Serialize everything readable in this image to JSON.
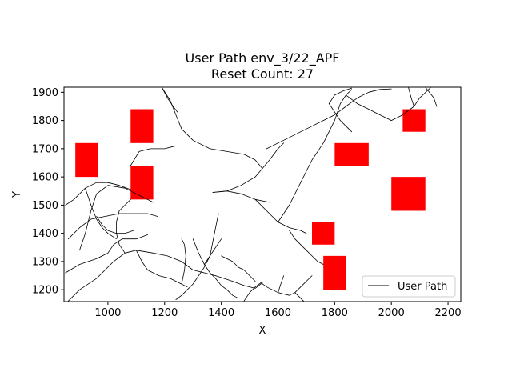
{
  "chart_data": {
    "type": "line",
    "title_line1": "User Path env_3/22_APF",
    "title_line2": "Reset Count: 27",
    "xlabel": "X",
    "ylabel": "Y",
    "xlim": [
      845,
      2245
    ],
    "ylim": [
      1158,
      1918
    ],
    "x_ticks": [
      1000,
      1200,
      1400,
      1600,
      1800,
      2000,
      2200
    ],
    "y_ticks": [
      1200,
      1300,
      1400,
      1500,
      1600,
      1700,
      1800,
      1900
    ],
    "legend": {
      "label": "User Path",
      "placement": "lower right"
    },
    "colors": {
      "path": "#000000",
      "obstacle": "#ff0000"
    },
    "obstacles": [
      {
        "x0": 885,
        "x1": 965,
        "y0": 1600,
        "y1": 1720
      },
      {
        "x0": 1080,
        "x1": 1160,
        "y0": 1720,
        "y1": 1840
      },
      {
        "x0": 1080,
        "x1": 1160,
        "y0": 1520,
        "y1": 1640
      },
      {
        "x0": 1800,
        "x1": 1920,
        "y0": 1640,
        "y1": 1720
      },
      {
        "x0": 2040,
        "x1": 2120,
        "y0": 1760,
        "y1": 1840
      },
      {
        "x0": 2000,
        "x1": 2120,
        "y0": 1480,
        "y1": 1600
      },
      {
        "x0": 1720,
        "x1": 1800,
        "y0": 1360,
        "y1": 1440
      },
      {
        "x0": 1760,
        "x1": 1840,
        "y0": 1200,
        "y1": 1320
      }
    ],
    "series": [
      {
        "name": "User Path",
        "segments": [
          [
            [
              860,
              1160
            ],
            [
              900,
              1200
            ],
            [
              960,
              1240
            ],
            [
              1020,
              1300
            ],
            [
              1060,
              1330
            ],
            [
              1100,
              1340
            ],
            [
              1160,
              1330
            ],
            [
              1210,
              1320
            ],
            [
              1260,
              1300
            ],
            [
              1300,
              1270
            ],
            [
              1340,
              1260
            ],
            [
              1380,
              1250
            ]
          ],
          [
            [
              1380,
              1250
            ],
            [
              1410,
              1240
            ],
            [
              1440,
              1230
            ],
            [
              1480,
              1215
            ],
            [
              1520,
              1205
            ],
            [
              1545,
              1225
            ]
          ],
          [
            [
              850,
              1260
            ],
            [
              900,
              1290
            ],
            [
              960,
              1310
            ],
            [
              1000,
              1330
            ],
            [
              1020,
              1360
            ],
            [
              1050,
              1380
            ],
            [
              1100,
              1380
            ],
            [
              1140,
              1395
            ]
          ],
          [
            [
              860,
              1380
            ],
            [
              900,
              1420
            ],
            [
              940,
              1450
            ],
            [
              990,
              1460
            ],
            [
              1040,
              1470
            ],
            [
              1090,
              1470
            ],
            [
              1140,
              1470
            ],
            [
              1175,
              1460
            ]
          ],
          [
            [
              900,
              1340
            ],
            [
              920,
              1400
            ],
            [
              940,
              1480
            ],
            [
              960,
              1540
            ],
            [
              1000,
              1570
            ],
            [
              1060,
              1560
            ],
            [
              1120,
              1530
            ],
            [
              1160,
              1510
            ]
          ],
          [
            [
              850,
              1500
            ],
            [
              880,
              1520
            ],
            [
              920,
              1560
            ],
            [
              960,
              1580
            ],
            [
              1000,
              1580
            ],
            [
              1040,
              1570
            ],
            [
              1080,
              1555
            ]
          ],
          [
            [
              1080,
              1640
            ],
            [
              1110,
              1690
            ],
            [
              1150,
              1700
            ],
            [
              1200,
              1700
            ],
            [
              1240,
              1710
            ]
          ],
          [
            [
              1190,
              1918
            ],
            [
              1220,
              1870
            ],
            [
              1240,
              1820
            ],
            [
              1260,
              1770
            ],
            [
              1300,
              1730
            ],
            [
              1360,
              1700
            ],
            [
              1420,
              1690
            ],
            [
              1480,
              1680
            ],
            [
              1520,
              1660
            ],
            [
              1545,
              1630
            ]
          ],
          [
            [
              1190,
              1918
            ],
            [
              1210,
              1880
            ],
            [
              1230,
              1850
            ],
            [
              1245,
              1830
            ]
          ],
          [
            [
              1545,
              1630
            ],
            [
              1520,
              1600
            ],
            [
              1470,
              1570
            ],
            [
              1420,
              1550
            ],
            [
              1370,
              1545
            ]
          ],
          [
            [
              1370,
              1545
            ],
            [
              1420,
              1550
            ],
            [
              1470,
              1540
            ],
            [
              1520,
              1520
            ],
            [
              1570,
              1510
            ]
          ],
          [
            [
              1520,
              1520
            ],
            [
              1560,
              1480
            ],
            [
              1600,
              1440
            ],
            [
              1640,
              1420
            ],
            [
              1680,
              1410
            ],
            [
              1700,
              1400
            ]
          ],
          [
            [
              1560,
              1700
            ],
            [
              1600,
              1720
            ],
            [
              1640,
              1740
            ],
            [
              1680,
              1760
            ],
            [
              1720,
              1780
            ],
            [
              1760,
              1800
            ],
            [
              1800,
              1820
            ],
            [
              1840,
              1850
            ],
            [
              1880,
              1880
            ],
            [
              1920,
              1900
            ],
            [
              1960,
              1910
            ],
            [
              2000,
              1912
            ]
          ],
          [
            [
              1545,
              1630
            ],
            [
              1570,
              1660
            ],
            [
              1600,
              1700
            ],
            [
              1620,
              1720
            ]
          ],
          [
            [
              1600,
              1440
            ],
            [
              1620,
              1470
            ],
            [
              1640,
              1500
            ],
            [
              1660,
              1540
            ],
            [
              1680,
              1580
            ],
            [
              1700,
              1620
            ],
            [
              1720,
              1660
            ],
            [
              1760,
              1720
            ],
            [
              1800,
              1800
            ],
            [
              1820,
              1860
            ],
            [
              1840,
              1890
            ],
            [
              1860,
              1910
            ]
          ],
          [
            [
              1840,
              1890
            ],
            [
              1880,
              1860
            ],
            [
              1920,
              1840
            ],
            [
              1960,
              1820
            ],
            [
              2000,
              1800
            ]
          ],
          [
            [
              2000,
              1800
            ],
            [
              2040,
              1820
            ],
            [
              2080,
              1850
            ],
            [
              2100,
              1880
            ],
            [
              2140,
              1918
            ]
          ],
          [
            [
              2120,
              1918
            ],
            [
              2150,
              1880
            ],
            [
              2160,
              1850
            ]
          ],
          [
            [
              2060,
              1918
            ],
            [
              2070,
              1880
            ],
            [
              2080,
              1850
            ]
          ],
          [
            [
              1300,
              1380
            ],
            [
              1320,
              1330
            ],
            [
              1340,
              1290
            ],
            [
              1360,
              1260
            ],
            [
              1380,
              1240
            ],
            [
              1400,
              1215
            ],
            [
              1420,
              1200
            ],
            [
              1440,
              1180
            ],
            [
              1460,
              1170
            ]
          ],
          [
            [
              1390,
              1470
            ],
            [
              1380,
              1420
            ],
            [
              1370,
              1370
            ],
            [
              1360,
              1320
            ],
            [
              1340,
              1280
            ],
            [
              1320,
              1250
            ],
            [
              1300,
              1220
            ],
            [
              1280,
              1200
            ],
            [
              1260,
              1180
            ],
            [
              1240,
              1165
            ]
          ],
          [
            [
              1400,
              1320
            ],
            [
              1440,
              1300
            ],
            [
              1460,
              1280
            ],
            [
              1480,
              1270
            ],
            [
              1500,
              1250
            ],
            [
              1520,
              1230
            ]
          ],
          [
            [
              1480,
              1160
            ],
            [
              1500,
              1190
            ],
            [
              1520,
              1210
            ],
            [
              1540,
              1225
            ]
          ],
          [
            [
              1540,
              1225
            ],
            [
              1560,
              1210
            ],
            [
              1580,
              1200
            ],
            [
              1600,
              1190
            ],
            [
              1620,
              1185
            ],
            [
              1640,
              1180
            ],
            [
              1660,
              1190
            ],
            [
              1680,
              1210
            ],
            [
              1700,
              1230
            ],
            [
              1720,
              1250
            ]
          ],
          [
            [
              1660,
              1190
            ],
            [
              1690,
              1160
            ]
          ],
          [
            [
              1600,
              1190
            ],
            [
              1610,
              1220
            ],
            [
              1620,
              1250
            ]
          ],
          [
            [
              1340,
              1290
            ],
            [
              1360,
              1320
            ],
            [
              1380,
              1350
            ],
            [
              1400,
              1380
            ]
          ],
          [
            [
              1640,
              1410
            ],
            [
              1660,
              1380
            ],
            [
              1680,
              1360
            ],
            [
              1700,
              1340
            ],
            [
              1720,
              1320
            ],
            [
              1740,
              1300
            ],
            [
              1760,
              1290
            ]
          ],
          [
            [
              1060,
              1330
            ],
            [
              1040,
              1360
            ],
            [
              1030,
              1400
            ],
            [
              1030,
              1440
            ],
            [
              1040,
              1480
            ],
            [
              1060,
              1500
            ],
            [
              1080,
              1520
            ]
          ],
          [
            [
              1100,
              1340
            ],
            [
              1120,
              1300
            ],
            [
              1140,
              1270
            ],
            [
              1180,
              1250
            ],
            [
              1220,
              1240
            ],
            [
              1260,
              1220
            ],
            [
              1280,
              1210
            ]
          ],
          [
            [
              1260,
              1220
            ],
            [
              1270,
              1270
            ],
            [
              1275,
              1320
            ],
            [
              1270,
              1360
            ],
            [
              1260,
              1380
            ]
          ],
          [
            [
              1780,
              1860
            ],
            [
              1800,
              1830
            ],
            [
              1820,
              1800
            ],
            [
              1840,
              1780
            ],
            [
              1860,
              1760
            ]
          ],
          [
            [
              1780,
              1860
            ],
            [
              1800,
              1890
            ],
            [
              1830,
              1905
            ],
            [
              1860,
              1915
            ]
          ],
          [
            [
              920,
              1560
            ],
            [
              940,
              1500
            ],
            [
              960,
              1450
            ],
            [
              980,
              1420
            ],
            [
              1000,
              1400
            ],
            [
              1030,
              1380
            ]
          ],
          [
            [
              960,
              1460
            ],
            [
              980,
              1430
            ],
            [
              1000,
              1410
            ],
            [
              1030,
              1400
            ],
            [
              1060,
              1400
            ],
            [
              1090,
              1410
            ]
          ]
        ]
      }
    ]
  }
}
